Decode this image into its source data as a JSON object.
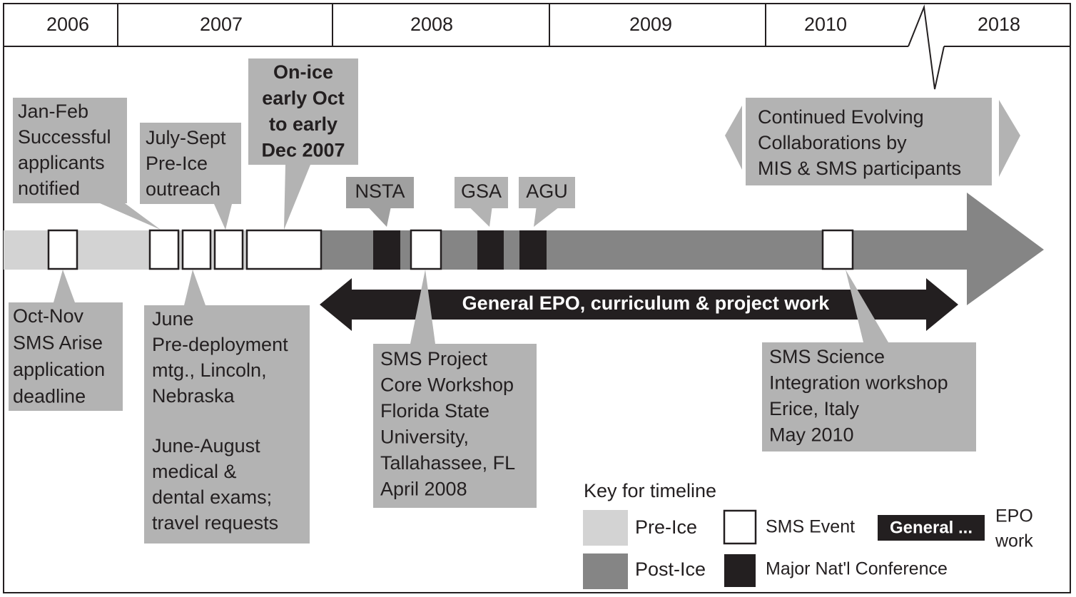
{
  "years": [
    "2006",
    "2007",
    "2008",
    "2009",
    "2010",
    "2018"
  ],
  "callouts": [
    {
      "paragraphs": [
        [
          "Jan-Feb",
          "Successful",
          "applicants",
          "notified"
        ]
      ]
    },
    {
      "paragraphs": [
        [
          "July-Sept",
          "Pre-Ice",
          "outreach"
        ]
      ]
    },
    {
      "paragraphs": [
        [
          "On-ice",
          "early Oct",
          "to early",
          "Dec 2007"
        ]
      ]
    },
    {
      "paragraphs": [
        [
          "Continued Evolving",
          "Collaborations by",
          "MIS & SMS participants"
        ]
      ]
    },
    {
      "paragraphs": [
        [
          "Oct-Nov",
          "SMS Arise",
          "application",
          "deadline"
        ]
      ]
    },
    {
      "paragraphs": [
        [
          "June",
          "Pre-deployment",
          "mtg., Lincoln,",
          "Nebraska"
        ],
        [
          "June-August",
          "medical &",
          "dental exams;",
          "travel requests"
        ]
      ]
    },
    {
      "paragraphs": [
        [
          "SMS Project",
          "Core Workshop",
          "Florida State",
          "University,",
          "Tallahassee, FL",
          "April 2008"
        ]
      ]
    },
    {
      "paragraphs": [
        [
          "SMS Science",
          "Integration workshop",
          "Erice, Italy",
          "May 2010"
        ]
      ]
    }
  ],
  "conferences": [
    "NSTA",
    "GSA",
    "AGU"
  ],
  "epo_bar": "General EPO, curriculum & project work",
  "key": {
    "title": "Key for timeline",
    "pre_ice": "Pre-Ice",
    "post_ice": "Post-Ice",
    "sms_event": "SMS Event",
    "epo_sample": "General ...",
    "epo_label": [
      "EPO",
      "work"
    ],
    "conference": "Major Nat'l Conference"
  }
}
